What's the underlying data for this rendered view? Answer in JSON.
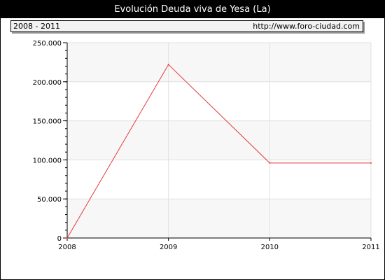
{
  "header": {
    "title": "Evolución Deuda viva de Yesa (La)",
    "period": "2008 - 2011",
    "site": "http://www.foro-ciudad.com"
  },
  "chart_data": {
    "type": "line",
    "title": "Evolución Deuda viva de Yesa (La)",
    "xlabel": "",
    "ylabel": "",
    "x": [
      "2008",
      "2009",
      "2010",
      "2011"
    ],
    "series": [
      {
        "values": [
          0,
          222000,
          96000,
          96000
        ],
        "color": "#e8393b"
      }
    ],
    "ylim": [
      0,
      250000
    ],
    "yticks": [
      0,
      50000,
      100000,
      150000,
      200000,
      250000
    ],
    "ytick_labels": [
      "0",
      "50.000",
      "100.000",
      "150.000",
      "200.000",
      "250.000"
    ],
    "grid": true,
    "band_colors": [
      "#f7f7f7",
      "#ffffff"
    ],
    "grid_color": "#e0e0e0"
  }
}
